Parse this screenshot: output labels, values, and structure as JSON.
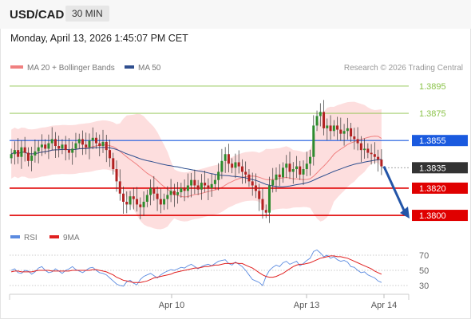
{
  "header": {
    "symbol": "USD/CAD",
    "timeframe": "30 MIN",
    "timestamp": "Monday, April 13, 2026 1:45:07 PM CET"
  },
  "legend": {
    "ma20_label": "MA 20 + Bollinger Bands",
    "ma50_label": "MA 50",
    "credit": "Research © 2026 Trading Central"
  },
  "rsi_legend": {
    "rsi_label": "RSI",
    "ma_label": "9MA"
  },
  "colors": {
    "resistance": "#8bc34a",
    "current_level": "#1a5adf",
    "support": "#e00000",
    "last_price": "#333333",
    "bollinger_fill": "#fdd8d8",
    "ma20": "#f08080",
    "ma50": "#2f4f8f",
    "candle_up": "#2e8b2e",
    "candle_down": "#b22222",
    "arrow": "#2355a8",
    "rsi_line": "#5b8be0",
    "rsi_ma": "#e02020"
  },
  "chart_data": [
    {
      "type": "candlestick",
      "title": "USD/CAD 30 MIN",
      "x_ticks": [
        "Apr 10",
        "Apr 13",
        "Apr 14"
      ],
      "price_range": [
        1.3793,
        1.3902
      ],
      "levels": [
        {
          "value": 1.3895,
          "label": "1.3895",
          "kind": "resistance"
        },
        {
          "value": 1.3875,
          "label": "1.3875",
          "kind": "resistance"
        },
        {
          "value": 1.3855,
          "label": "1.3855",
          "kind": "pivot"
        },
        {
          "value": 1.3835,
          "label": "1.3835",
          "kind": "last"
        },
        {
          "value": 1.382,
          "label": "1.3820",
          "kind": "support"
        },
        {
          "value": 1.38,
          "label": "1.3800",
          "kind": "support"
        }
      ],
      "ohlc_close": [
        1.3845,
        1.3848,
        1.3843,
        1.385,
        1.3846,
        1.384,
        1.3844,
        1.3847,
        1.385,
        1.3852,
        1.3849,
        1.3853,
        1.3856,
        1.3851,
        1.3849,
        1.3852,
        1.3848,
        1.3846,
        1.3849,
        1.3853,
        1.3856,
        1.3852,
        1.385,
        1.3855,
        1.3857,
        1.3853,
        1.3851,
        1.3854,
        1.3848,
        1.3842,
        1.3834,
        1.3825,
        1.3816,
        1.381,
        1.3808,
        1.3814,
        1.3812,
        1.3808,
        1.3806,
        1.381,
        1.3815,
        1.382,
        1.3816,
        1.3812,
        1.3808,
        1.3812,
        1.3815,
        1.3818,
        1.3815,
        1.3817,
        1.382,
        1.3818,
        1.3822,
        1.3826,
        1.3822,
        1.3819,
        1.3824,
        1.3822,
        1.382,
        1.3823,
        1.3826,
        1.3832,
        1.384,
        1.3845,
        1.3838,
        1.3835,
        1.3839,
        1.3836,
        1.3832,
        1.383,
        1.3825,
        1.3822,
        1.3818,
        1.3812,
        1.3804,
        1.3802,
        1.3822,
        1.3826,
        1.383,
        1.3828,
        1.3835,
        1.3838,
        1.3832,
        1.3834,
        1.3836,
        1.383,
        1.3834,
        1.3838,
        1.3843,
        1.3866,
        1.3873,
        1.3876,
        1.3864,
        1.3866,
        1.3862,
        1.3866,
        1.3863,
        1.386,
        1.3862,
        1.3864,
        1.3858,
        1.3856,
        1.3853,
        1.3848,
        1.3849,
        1.3846,
        1.3845,
        1.3843,
        1.3841,
        1.3836
      ],
      "series": [
        {
          "name": "MA 20 + Bollinger Bands"
        },
        {
          "name": "MA 50"
        }
      ],
      "annotations": [
        "Forecast arrow pointing down toward 1.3800"
      ]
    },
    {
      "type": "line",
      "title": "RSI",
      "y_ticks": [
        70,
        50,
        30
      ],
      "y_range": [
        20,
        80
      ],
      "series": [
        {
          "name": "RSI",
          "values": [
            50,
            52,
            47,
            46,
            50,
            49,
            45,
            48,
            53,
            55,
            50,
            47,
            48,
            52,
            49,
            46,
            50,
            52,
            55,
            51,
            49,
            47,
            50,
            53,
            54,
            50,
            47,
            46,
            44,
            40,
            36,
            32,
            30,
            29,
            35,
            37,
            33,
            31,
            38,
            42,
            44,
            46,
            43,
            40,
            44,
            47,
            49,
            51,
            50,
            52,
            54,
            53,
            56,
            58,
            55,
            52,
            55,
            57,
            58,
            56,
            59,
            62,
            63,
            64,
            59,
            57,
            61,
            58,
            55,
            50,
            44,
            38,
            36,
            34,
            30,
            42,
            50,
            54,
            57,
            55,
            60,
            62,
            58,
            60,
            62,
            56,
            59,
            63,
            66,
            75,
            77,
            73,
            68,
            70,
            66,
            68,
            64,
            62,
            63,
            61,
            55,
            54,
            50,
            47,
            48,
            44,
            42,
            40,
            36,
            34
          ]
        },
        {
          "name": "9MA",
          "values": [
            48,
            49,
            49,
            48,
            48,
            48,
            48,
            49,
            50,
            50,
            50,
            50,
            49,
            49,
            49,
            49,
            49,
            49,
            50,
            50,
            50,
            50,
            50,
            50,
            51,
            51,
            50,
            49,
            48,
            46,
            44,
            41,
            39,
            37,
            36,
            35,
            34,
            34,
            34,
            35,
            36,
            38,
            40,
            41,
            42,
            43,
            44,
            45,
            47,
            48,
            49,
            50,
            51,
            52,
            53,
            53,
            54,
            55,
            55,
            56,
            57,
            57,
            58,
            59,
            59,
            59,
            60,
            59,
            59,
            57,
            55,
            53,
            50,
            47,
            44,
            42,
            41,
            41,
            42,
            44,
            46,
            49,
            52,
            55,
            57,
            58,
            58,
            59,
            60,
            62,
            64,
            66,
            67,
            68,
            69,
            69,
            68,
            68,
            67,
            66,
            64,
            62,
            60,
            58,
            56,
            54,
            52,
            49,
            47,
            45
          ]
        }
      ]
    }
  ]
}
